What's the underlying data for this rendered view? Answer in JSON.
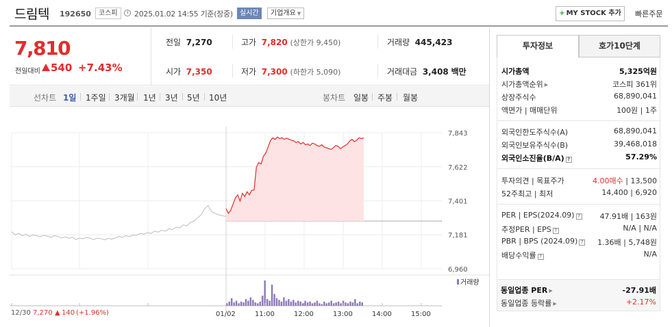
{
  "header": {
    "name": "드림텍",
    "code": "192650",
    "market_badge": "코스피",
    "datetime": "2025.01.02 14:55  기준(장중)",
    "realtime_badge": "실시간",
    "company_btn": "기업개요",
    "mystock_btn": "MY STOCK 추가",
    "quick_order": "빠른주문"
  },
  "summary": {
    "current_price": "7,810",
    "change_label": "전일대비",
    "change_value": "540",
    "change_rate": "+7.43%",
    "prev_close_label": "전일",
    "prev_close": "7,270",
    "open_label": "시가",
    "open": "7,350",
    "high_label": "고가",
    "high": "7,820",
    "upper_limit": "(상한가 9,450)",
    "low_label": "저가",
    "low": "7,300",
    "lower_limit": "(하한가 5,090)",
    "volume_label": "거래량",
    "volume": "445,423",
    "amount_label": "거래대금",
    "amount": "3,408",
    "amount_unit": "백만"
  },
  "period_bar": {
    "line_label": "선차트",
    "line_periods": [
      "1일",
      "1주일",
      "3개월",
      "1년",
      "3년",
      "5년",
      "10년"
    ],
    "active": "1일",
    "candle_label": "봉차트",
    "candle_periods": [
      "일봉",
      "주봉",
      "월봉"
    ]
  },
  "chart_data": {
    "type": "line",
    "y_ticks": [
      "7,843",
      "7,622",
      "7,401",
      "7,181",
      "6,960"
    ],
    "ylim": [
      6960,
      7843
    ],
    "x_ticks": [
      "01/02",
      "11:00",
      "12:00",
      "13:00",
      "14:00",
      "15:00"
    ],
    "baseline": 7270,
    "volume_legend": "거래량",
    "prev_day": {
      "date": "12/30",
      "close": "7,270",
      "change": "140",
      "rate": "(+1.96%)"
    },
    "series": [
      {
        "values": [
          7200,
          7180,
          7190,
          7175,
          7185,
          7170,
          7180,
          7175,
          7168,
          7178,
          7172,
          7165,
          7175,
          7170,
          7160,
          7168,
          7158,
          7165,
          7150,
          7160,
          7155,
          7165,
          7158,
          7150,
          7160,
          7155,
          7148,
          7158,
          7152,
          7160,
          7170,
          7165,
          7175,
          7168,
          7180,
          7178,
          7190,
          7185,
          7195,
          7190,
          7205,
          7198,
          7210,
          7205,
          7220,
          7215,
          7230,
          7225,
          7245,
          7240,
          7260,
          7270,
          7290,
          7310,
          7350,
          7370,
          7330,
          7320,
          7310,
          7305,
          7300
        ]
      },
      {
        "values": [
          7350,
          7320,
          7340,
          7380,
          7420,
          7440,
          7400,
          7450,
          7430,
          7460,
          7440,
          7470,
          7470,
          7620,
          7650,
          7640,
          7690,
          7710,
          7750,
          7790,
          7810,
          7800,
          7815,
          7805,
          7810,
          7800,
          7808,
          7800,
          7795,
          7790,
          7780,
          7785,
          7770,
          7780,
          7765,
          7770,
          7760,
          7775,
          7770,
          7760,
          7755,
          7765,
          7750,
          7745,
          7740,
          7735,
          7745,
          7760,
          7755,
          7740,
          7750,
          7760,
          7770,
          7790,
          7800,
          7785,
          7795,
          7810,
          7805,
          7810
        ]
      }
    ],
    "volume_bars": [
      3,
      5,
      9,
      4,
      6,
      3,
      5,
      4,
      8,
      6,
      10,
      7,
      4,
      3,
      5,
      12,
      30,
      8,
      6,
      25,
      14,
      9,
      7,
      5,
      10,
      6,
      8,
      5,
      7,
      4,
      6,
      5,
      3,
      6,
      4,
      5,
      3,
      4,
      6,
      3,
      2,
      5,
      3,
      4,
      6,
      3,
      4,
      5,
      3,
      6,
      4,
      3,
      5,
      4,
      8,
      3,
      5,
      4
    ]
  },
  "info_panel": {
    "tab_active": "투자정보",
    "tab_other": "호가10단계",
    "rows": [
      {
        "k": "시가총액",
        "v": "5,325억원"
      },
      {
        "k": "시가총액순위",
        "v": "코스피 361위"
      },
      {
        "k": "상장주식수",
        "v": "68,890,041"
      },
      {
        "k": "액면가 | 매매단위",
        "v": "100원 | 1주"
      },
      {
        "k": "외국인한도주식수(A)",
        "v": "68,890,041"
      },
      {
        "k": "외국인보유주식수(B)",
        "v": "39,468,018"
      },
      {
        "k": "외국인소진율(B/A)",
        "v": "57.29%"
      },
      {
        "k": "투자의견 | 목표주가",
        "v1": "4.00매수",
        "v2": "13,500"
      },
      {
        "k": "52주최고 | 최저",
        "v": "14,400 | 6,920"
      },
      {
        "k": "PER | EPS(2024.09)",
        "v": "47.91배 | 163원"
      },
      {
        "k": "추정PER | EPS",
        "v": "N/A | N/A"
      },
      {
        "k": "PBR | BPS (2024.09)",
        "v": "1.36배 | 5,748원"
      },
      {
        "k": "배당수익률",
        "v": "N/A"
      },
      {
        "k": "동일업종 PER",
        "v": "-27.91배"
      },
      {
        "k": "동일업종 등락률",
        "v": "+2.17%"
      }
    ]
  }
}
